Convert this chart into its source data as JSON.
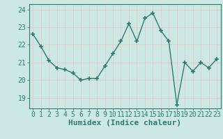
{
  "x": [
    0,
    1,
    2,
    3,
    4,
    5,
    6,
    7,
    8,
    9,
    10,
    11,
    12,
    13,
    14,
    15,
    16,
    17,
    18,
    19,
    20,
    21,
    22,
    23
  ],
  "y": [
    22.6,
    21.9,
    21.1,
    20.7,
    20.6,
    20.4,
    20.0,
    20.1,
    20.1,
    20.8,
    21.5,
    22.2,
    23.2,
    22.2,
    23.5,
    23.8,
    22.8,
    22.2,
    18.6,
    21.0,
    20.5,
    21.0,
    20.7,
    21.2
  ],
  "line_color": "#2d7a6e",
  "marker": "+",
  "marker_size": 4,
  "bg_color": "#cce8e4",
  "grid_color": "#e8c8c8",
  "xlabel": "Humidex (Indice chaleur)",
  "ylabel_ticks": [
    19,
    20,
    21,
    22,
    23,
    24
  ],
  "ylim": [
    18.4,
    24.3
  ],
  "xlim": [
    -0.5,
    23.5
  ],
  "tick_label_color": "#2d7a6e",
  "xlabel_fontsize": 8,
  "tick_fontsize": 7,
  "linewidth": 1.0
}
